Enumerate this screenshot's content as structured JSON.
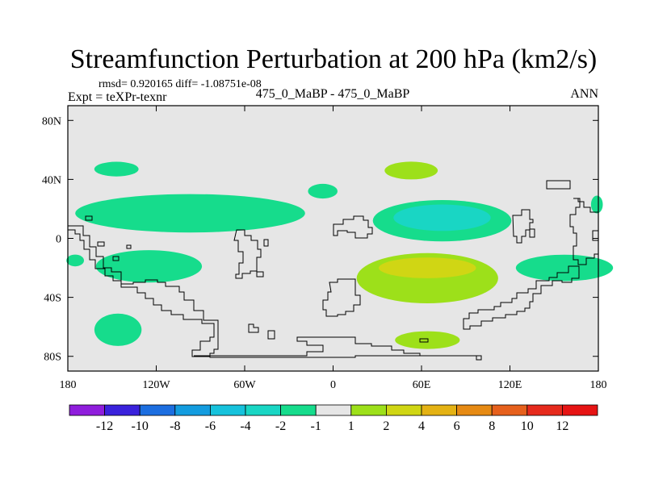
{
  "title": "Streamfunction Perturbation at 200 hPa (km2/s)",
  "stats_line": "rmsd= 0.920165 diff= -1.08751e-08",
  "experiment_label": "Expt = teXPr-texnr",
  "case_label": "475_0_MaBP - 475_0_MaBP",
  "season_label": "ANN",
  "colors": {
    "map_background": "#e6e6e6",
    "coastline": "#000000"
  },
  "chart_data": {
    "type": "heatmap",
    "projection": "cylindrical equidistant",
    "xlim": [
      -180,
      180
    ],
    "ylim": [
      -90,
      90
    ],
    "x_ticks": [
      {
        "value": -180,
        "label": "180"
      },
      {
        "value": -120,
        "label": "120W"
      },
      {
        "value": -60,
        "label": "60W"
      },
      {
        "value": 0,
        "label": "0"
      },
      {
        "value": 60,
        "label": "60E"
      },
      {
        "value": 120,
        "label": "120E"
      },
      {
        "value": 180,
        "label": "180"
      }
    ],
    "y_ticks": [
      {
        "value": 80,
        "label": "80N"
      },
      {
        "value": 40,
        "label": "40N"
      },
      {
        "value": 0,
        "label": "0"
      },
      {
        "value": -40,
        "label": "40S"
      },
      {
        "value": -80,
        "label": "80S"
      }
    ],
    "colorbar": {
      "boundaries": [
        "-12",
        "-10",
        "-8",
        "-6",
        "-4",
        "-2",
        "-1",
        "1",
        "2",
        "4",
        "6",
        "8",
        "10",
        "12"
      ],
      "colors": [
        "#8f1ddc",
        "#3a22dc",
        "#1c6ee0",
        "#139cdf",
        "#16c2dc",
        "#19d6c4",
        "#16dc8c",
        "#e6e6e6",
        "#9de01a",
        "#d0d614",
        "#e4b214",
        "#e68a14",
        "#e6601c",
        "#e62a1c",
        "#e61414"
      ]
    },
    "regions": [
      {
        "level": "-2 to -1",
        "center": [
          -147,
          47
        ],
        "radius": [
          15,
          5
        ],
        "color": "#16dc8c"
      },
      {
        "level": "-2 to -1",
        "center": [
          -97,
          17
        ],
        "radius": [
          78,
          13
        ],
        "color": "#16dc8c"
      },
      {
        "level": "-2 to -1",
        "center": [
          -7,
          32
        ],
        "radius": [
          10,
          5
        ],
        "color": "#16dc8c"
      },
      {
        "level": "-2 to -1",
        "center": [
          -125,
          -19
        ],
        "radius": [
          36,
          11
        ],
        "color": "#16dc8c"
      },
      {
        "level": "-2 to -1",
        "center": [
          -175,
          -15
        ],
        "radius": [
          6,
          4
        ],
        "color": "#16dc8c"
      },
      {
        "level": "-2 to -1",
        "center": [
          -146,
          -62
        ],
        "radius": [
          16,
          11
        ],
        "color": "#16dc8c"
      },
      {
        "level": "-2 to -1",
        "center": [
          74,
          12
        ],
        "radius": [
          47,
          14
        ],
        "color": "#16dc8c"
      },
      {
        "level": "-4 to -2",
        "center": [
          74,
          14
        ],
        "radius": [
          33,
          9
        ],
        "color": "#19d6c4"
      },
      {
        "level": "-2 to -1",
        "center": [
          157,
          -20
        ],
        "radius": [
          33,
          9
        ],
        "color": "#16dc8c"
      },
      {
        "level": "-2 to -1",
        "center": [
          179,
          23
        ],
        "radius": [
          4,
          6
        ],
        "color": "#16dc8c"
      },
      {
        "level": "1 to 2",
        "center": [
          53,
          46
        ],
        "radius": [
          18,
          6
        ],
        "color": "#9de01a"
      },
      {
        "level": "1 to 2",
        "center": [
          64,
          -27
        ],
        "radius": [
          48,
          17
        ],
        "color": "#9de01a"
      },
      {
        "level": "2 to 4",
        "center": [
          64,
          -20
        ],
        "radius": [
          33,
          7
        ],
        "color": "#d0d614"
      },
      {
        "level": "1 to 2",
        "center": [
          64,
          -69
        ],
        "radius": [
          22,
          6
        ],
        "color": "#9de01a"
      }
    ]
  }
}
